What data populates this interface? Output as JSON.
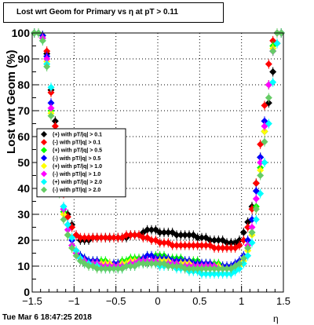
{
  "chart_data": {
    "type": "scatter",
    "title": "Lost wrt Geom for Primary vs   η at pT > 0.11",
    "xlabel": "η",
    "ylabel": "Lost wrt Geom (%)",
    "xlim": [
      -1.5,
      1.5
    ],
    "ylim": [
      0,
      100
    ],
    "x_ticks": [
      "−1.5",
      "−1",
      "−0.5",
      "0",
      "0.5",
      "1",
      "1.5"
    ],
    "y_ticks": [
      "0",
      "10",
      "20",
      "30",
      "40",
      "50",
      "60",
      "70",
      "80",
      "90",
      "100"
    ],
    "grid": true,
    "legend_position": "middle-left",
    "x": [
      -1.475,
      -1.425,
      -1.375,
      -1.325,
      -1.275,
      -1.225,
      -1.175,
      -1.125,
      -1.075,
      -1.025,
      -0.975,
      -0.925,
      -0.875,
      -0.825,
      -0.775,
      -0.725,
      -0.675,
      -0.625,
      -0.575,
      -0.525,
      -0.475,
      -0.425,
      -0.375,
      -0.325,
      -0.275,
      -0.225,
      -0.175,
      -0.125,
      -0.075,
      -0.025,
      0.025,
      0.075,
      0.125,
      0.175,
      0.225,
      0.275,
      0.325,
      0.375,
      0.425,
      0.475,
      0.525,
      0.575,
      0.625,
      0.675,
      0.725,
      0.775,
      0.825,
      0.875,
      0.925,
      0.975,
      1.025,
      1.075,
      1.125,
      1.175,
      1.225,
      1.275,
      1.325,
      1.375,
      1.425,
      1.475
    ],
    "series": [
      {
        "name": "(+) with pT/|q| > 0.1",
        "color": "#000000",
        "values": [
          100,
          100,
          99,
          92,
          78,
          66,
          50,
          40,
          30,
          26,
          22,
          20,
          20,
          20,
          21,
          21,
          21,
          21,
          21,
          21,
          21,
          21,
          21,
          22,
          22,
          22,
          23,
          24,
          24,
          24,
          23,
          23,
          23,
          23,
          22,
          22,
          22,
          22,
          22,
          21,
          21,
          21,
          20,
          20,
          20,
          20,
          19,
          19,
          19,
          20,
          23,
          27,
          33,
          42,
          52,
          62,
          73,
          85,
          96,
          100
        ]
      },
      {
        "name": "(-) with pT/|q| > 0.1",
        "color": "#ff0000",
        "values": [
          100,
          100,
          99,
          93,
          77,
          64,
          50,
          38,
          29,
          25,
          22,
          21,
          21,
          21,
          21,
          21,
          21,
          21,
          21,
          21,
          21,
          21,
          22,
          22,
          22,
          22,
          21,
          21,
          20,
          20,
          19,
          19,
          19,
          18,
          18,
          18,
          18,
          18,
          18,
          18,
          18,
          18,
          18,
          17,
          17,
          17,
          17,
          17,
          17,
          18,
          20,
          25,
          32,
          42,
          57,
          72,
          88,
          97,
          100,
          100
        ]
      },
      {
        "name": "(+) with pT/|q| > 0.5",
        "color": "#00ff00",
        "values": [
          100,
          100,
          99,
          90,
          70,
          56,
          42,
          31,
          22,
          18,
          16,
          14,
          13,
          12,
          12,
          12,
          12,
          12,
          11,
          11,
          11,
          12,
          12,
          13,
          13,
          13,
          13,
          14,
          14,
          14,
          14,
          14,
          13,
          13,
          13,
          13,
          12,
          12,
          12,
          12,
          11,
          11,
          11,
          11,
          11,
          10,
          10,
          10,
          10,
          11,
          13,
          17,
          23,
          33,
          48,
          62,
          80,
          95,
          100,
          100
        ]
      },
      {
        "name": "(-) with pT/|q| > 0.5",
        "color": "#0000ff",
        "values": [
          100,
          100,
          99,
          91,
          73,
          58,
          44,
          33,
          26,
          20,
          16,
          14,
          13,
          12,
          12,
          12,
          11,
          11,
          11,
          11,
          11,
          11,
          11,
          12,
          12,
          12,
          13,
          14,
          14,
          13,
          13,
          13,
          13,
          12,
          12,
          12,
          12,
          12,
          11,
          11,
          11,
          11,
          11,
          10,
          10,
          10,
          10,
          10,
          11,
          12,
          14,
          20,
          28,
          39,
          52,
          66,
          80,
          93,
          100,
          100
        ]
      },
      {
        "name": "(+) with pT/|q| > 1.0",
        "color": "#ffff00",
        "values": [
          100,
          100,
          98,
          89,
          69,
          55,
          40,
          30,
          22,
          17,
          15,
          13,
          12,
          11,
          11,
          11,
          11,
          11,
          11,
          10,
          10,
          11,
          11,
          12,
          12,
          12,
          12,
          12,
          12,
          12,
          12,
          12,
          12,
          11,
          11,
          11,
          11,
          11,
          10,
          10,
          10,
          10,
          10,
          10,
          10,
          9,
          9,
          9,
          10,
          10,
          12,
          16,
          22,
          32,
          47,
          62,
          80,
          94,
          100,
          100
        ]
      },
      {
        "name": "(-) with pT/|q| > 1.0",
        "color": "#ff00ff",
        "values": [
          100,
          100,
          98,
          90,
          71,
          57,
          43,
          32,
          24,
          18,
          15,
          13,
          12,
          11,
          11,
          11,
          10,
          10,
          10,
          10,
          10,
          10,
          10,
          11,
          11,
          12,
          12,
          12,
          12,
          12,
          11,
          11,
          11,
          11,
          11,
          10,
          10,
          10,
          10,
          10,
          10,
          10,
          10,
          10,
          9,
          9,
          9,
          9,
          10,
          11,
          13,
          18,
          25,
          36,
          50,
          64,
          80,
          93,
          100,
          100
        ]
      },
      {
        "name": "(+) with pT/|q| > 2.0",
        "color": "#00ffff",
        "values": [
          100,
          100,
          97,
          88,
          79,
          61,
          45,
          33,
          26,
          21,
          16,
          13,
          11,
          11,
          10,
          10,
          9,
          9,
          9,
          9,
          9,
          9,
          10,
          10,
          10,
          11,
          11,
          11,
          11,
          11,
          10,
          10,
          10,
          10,
          9,
          9,
          9,
          8,
          8,
          8,
          7,
          7,
          7,
          7,
          7,
          7,
          7,
          7,
          8,
          9,
          11,
          14,
          19,
          28,
          38,
          50,
          65,
          81,
          96,
          100
        ]
      },
      {
        "name": "(-) with pT/|q| > 2.0",
        "color": "#66cc66",
        "values": [
          100,
          100,
          97,
          87,
          68,
          52,
          38,
          28,
          22,
          17,
          14,
          12,
          11,
          10,
          10,
          9,
          9,
          9,
          9,
          9,
          9,
          9,
          10,
          10,
          10,
          11,
          11,
          11,
          11,
          11,
          11,
          11,
          10,
          10,
          10,
          10,
          9,
          9,
          9,
          9,
          9,
          9,
          9,
          9,
          9,
          9,
          9,
          9,
          10,
          11,
          13,
          17,
          23,
          32,
          45,
          58,
          75,
          93,
          100,
          100
        ]
      }
    ]
  },
  "footer": {
    "timestamp": "Tue Mar  6 18:47:25 2018"
  }
}
